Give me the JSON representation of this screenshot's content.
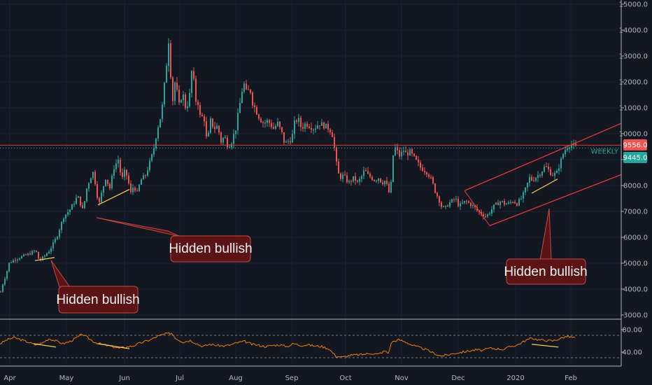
{
  "colors": {
    "background": "#131722",
    "grid": "#1e222d",
    "up": "#26a69a",
    "down": "#ef5350",
    "channel": "#e03a3a",
    "divergence": "#ffd54f",
    "rsi": "#f57c00",
    "callout_fill": "#5a1416",
    "callout_stroke": "#c24a44"
  },
  "chart_data": {
    "type": "candlestick",
    "price_axis": {
      "ticks": [
        "15000.0",
        "14000.0",
        "13000.0",
        "12000.0",
        "11000.0",
        "10000.0",
        "9000.0",
        "8000.0",
        "7000.0",
        "6000.0",
        "5000.0",
        "4000.0",
        "3000.0"
      ],
      "ylim": [
        3000,
        15000
      ]
    },
    "rsi_axis": {
      "ticks": [
        "80.00",
        "40.00"
      ],
      "ylim": [
        20,
        90
      ],
      "bands": [
        70,
        30
      ]
    },
    "time_axis": {
      "labels": [
        "Apr",
        "May",
        "Jun",
        "Jul",
        "Aug",
        "Sep",
        "Oct",
        "Nov",
        "Dec",
        "2020",
        "Feb"
      ]
    },
    "price_anchors": [
      [
        0,
        3900
      ],
      [
        3,
        4200
      ],
      [
        8,
        4600
      ],
      [
        12,
        5000
      ],
      [
        20,
        5150
      ],
      [
        30,
        5250
      ],
      [
        40,
        5350
      ],
      [
        50,
        5500
      ],
      [
        55,
        5100
      ],
      [
        60,
        5200
      ],
      [
        70,
        5500
      ],
      [
        80,
        6000
      ],
      [
        90,
        6800
      ],
      [
        100,
        7100
      ],
      [
        110,
        7600
      ],
      [
        118,
        7000
      ],
      [
        122,
        7800
      ],
      [
        128,
        8300
      ],
      [
        132,
        8500
      ],
      [
        136,
        8000
      ],
      [
        140,
        7200
      ],
      [
        145,
        7800
      ],
      [
        150,
        8300
      ],
      [
        156,
        7900
      ],
      [
        162,
        8700
      ],
      [
        168,
        9000
      ],
      [
        173,
        8200
      ],
      [
        178,
        8600
      ],
      [
        182,
        8200
      ],
      [
        186,
        7700
      ],
      [
        190,
        8000
      ],
      [
        195,
        7700
      ],
      [
        200,
        8200
      ],
      [
        207,
        8400
      ],
      [
        212,
        8800
      ],
      [
        218,
        9300
      ],
      [
        224,
        10200
      ],
      [
        230,
        10800
      ],
      [
        236,
        12400
      ],
      [
        240,
        13600
      ],
      [
        243,
        12300
      ],
      [
        246,
        11300
      ],
      [
        250,
        12200
      ],
      [
        254,
        11000
      ],
      [
        260,
        11600
      ],
      [
        265,
        10900
      ],
      [
        270,
        11500
      ],
      [
        274,
        12700
      ],
      [
        278,
        11300
      ],
      [
        282,
        11200
      ],
      [
        286,
        10500
      ],
      [
        290,
        10800
      ],
      [
        295,
        9600
      ],
      [
        300,
        10500
      ],
      [
        305,
        10200
      ],
      [
        310,
        10300
      ],
      [
        315,
        9700
      ],
      [
        320,
        9900
      ],
      [
        325,
        9500
      ],
      [
        330,
        9700
      ],
      [
        336,
        10200
      ],
      [
        341,
        11000
      ],
      [
        347,
        12000
      ],
      [
        352,
        11500
      ],
      [
        356,
        11800
      ],
      [
        360,
        11200
      ],
      [
        365,
        10900
      ],
      [
        370,
        10600
      ],
      [
        376,
        10400
      ],
      [
        382,
        10500
      ],
      [
        390,
        10200
      ],
      [
        396,
        10400
      ],
      [
        402,
        10000
      ],
      [
        406,
        9600
      ],
      [
        410,
        9700
      ],
      [
        416,
        9800
      ],
      [
        420,
        10400
      ],
      [
        425,
        10600
      ],
      [
        430,
        10200
      ],
      [
        436,
        10400
      ],
      [
        442,
        10300
      ],
      [
        448,
        10200
      ],
      [
        455,
        10400
      ],
      [
        463,
        10300
      ],
      [
        470,
        10200
      ],
      [
        475,
        9900
      ],
      [
        479,
        9000
      ],
      [
        482,
        8500
      ],
      [
        485,
        8300
      ],
      [
        490,
        8400
      ],
      [
        497,
        8100
      ],
      [
        505,
        8300
      ],
      [
        510,
        8100
      ],
      [
        515,
        8300
      ],
      [
        520,
        8600
      ],
      [
        525,
        8400
      ],
      [
        530,
        8300
      ],
      [
        535,
        8200
      ],
      [
        540,
        8300
      ],
      [
        545,
        8100
      ],
      [
        550,
        8200
      ],
      [
        554,
        7800
      ],
      [
        557,
        7600
      ],
      [
        560,
        9000
      ],
      [
        563,
        9500
      ],
      [
        567,
        9300
      ],
      [
        571,
        9100
      ],
      [
        575,
        9400
      ],
      [
        580,
        9200
      ],
      [
        585,
        9300
      ],
      [
        590,
        9100
      ],
      [
        595,
        8900
      ],
      [
        600,
        8700
      ],
      [
        605,
        8600
      ],
      [
        610,
        8500
      ],
      [
        616,
        8200
      ],
      [
        622,
        7700
      ],
      [
        626,
        7500
      ],
      [
        630,
        7200
      ],
      [
        635,
        7100
      ],
      [
        640,
        7300
      ],
      [
        645,
        7400
      ],
      [
        650,
        7500
      ],
      [
        655,
        7200
      ],
      [
        660,
        7300
      ],
      [
        665,
        7400
      ],
      [
        670,
        7300
      ],
      [
        676,
        7200
      ],
      [
        682,
        7000
      ],
      [
        688,
        6900
      ],
      [
        694,
        6800
      ],
      [
        700,
        7000
      ],
      [
        705,
        7200
      ],
      [
        710,
        7300
      ],
      [
        715,
        7400
      ],
      [
        720,
        7300
      ],
      [
        726,
        7300
      ],
      [
        732,
        7400
      ],
      [
        738,
        7300
      ],
      [
        744,
        7500
      ],
      [
        748,
        7700
      ],
      [
        752,
        8000
      ],
      [
        756,
        8300
      ],
      [
        760,
        8200
      ],
      [
        764,
        8300
      ],
      [
        768,
        8400
      ],
      [
        772,
        8500
      ],
      [
        777,
        8700
      ],
      [
        781,
        8700
      ],
      [
        785,
        8500
      ],
      [
        790,
        8400
      ],
      [
        795,
        8500
      ],
      [
        800,
        8900
      ],
      [
        805,
        9300
      ],
      [
        810,
        9500
      ],
      [
        815,
        9600
      ],
      [
        820,
        9500
      ],
      [
        824,
        9450
      ]
    ],
    "rsi_anchors": [
      [
        0,
        55
      ],
      [
        10,
        62
      ],
      [
        20,
        66
      ],
      [
        30,
        62
      ],
      [
        40,
        58
      ],
      [
        50,
        53
      ],
      [
        60,
        56
      ],
      [
        70,
        64
      ],
      [
        80,
        60
      ],
      [
        90,
        55
      ],
      [
        100,
        59
      ],
      [
        110,
        66
      ],
      [
        118,
        72
      ],
      [
        125,
        66
      ],
      [
        135,
        58
      ],
      [
        145,
        54
      ],
      [
        160,
        50
      ],
      [
        170,
        47
      ],
      [
        180,
        49
      ],
      [
        190,
        51
      ],
      [
        200,
        56
      ],
      [
        215,
        62
      ],
      [
        225,
        68
      ],
      [
        235,
        72
      ],
      [
        245,
        74
      ],
      [
        252,
        64
      ],
      [
        262,
        58
      ],
      [
        272,
        61
      ],
      [
        280,
        56
      ],
      [
        290,
        50
      ],
      [
        300,
        54
      ],
      [
        310,
        52
      ],
      [
        320,
        51
      ],
      [
        330,
        53
      ],
      [
        340,
        57
      ],
      [
        350,
        59
      ],
      [
        360,
        54
      ],
      [
        370,
        52
      ],
      [
        380,
        50
      ],
      [
        390,
        52
      ],
      [
        400,
        53
      ],
      [
        410,
        50
      ],
      [
        420,
        55
      ],
      [
        430,
        52
      ],
      [
        440,
        53
      ],
      [
        450,
        51
      ],
      [
        460,
        50
      ],
      [
        470,
        46
      ],
      [
        480,
        33
      ],
      [
        490,
        31
      ],
      [
        500,
        34
      ],
      [
        510,
        35
      ],
      [
        520,
        36
      ],
      [
        530,
        38
      ],
      [
        540,
        36
      ],
      [
        550,
        42
      ],
      [
        555,
        38
      ],
      [
        560,
        58
      ],
      [
        570,
        62
      ],
      [
        580,
        58
      ],
      [
        590,
        52
      ],
      [
        600,
        48
      ],
      [
        610,
        44
      ],
      [
        620,
        38
      ],
      [
        630,
        33
      ],
      [
        640,
        35
      ],
      [
        650,
        38
      ],
      [
        660,
        40
      ],
      [
        670,
        42
      ],
      [
        680,
        44
      ],
      [
        690,
        43
      ],
      [
        700,
        47
      ],
      [
        710,
        46
      ],
      [
        720,
        45
      ],
      [
        730,
        50
      ],
      [
        740,
        53
      ],
      [
        750,
        60
      ],
      [
        760,
        65
      ],
      [
        770,
        62
      ],
      [
        780,
        61
      ],
      [
        790,
        60
      ],
      [
        800,
        64
      ],
      [
        810,
        68
      ],
      [
        820,
        66
      ],
      [
        824,
        66
      ]
    ],
    "last_price_tags": [
      {
        "value": 9556.0,
        "label": "9556.0"
      },
      {
        "value": 9445.0,
        "label": "9445.0"
      }
    ],
    "horizontal_line": {
      "value": 9556,
      "label": "WEEKLY"
    },
    "channel": {
      "upper": [
        [
          664,
          7800
        ],
        [
          888,
          10400
        ]
      ],
      "lower": [
        [
          700,
          6450
        ],
        [
          888,
          8420
        ]
      ]
    },
    "price_divergences": [
      [
        [
          50,
          5100
        ],
        [
          78,
          5220
        ]
      ],
      [
        [
          140,
          7250
        ],
        [
          185,
          7850
        ]
      ],
      [
        [
          760,
          7700
        ],
        [
          797,
          8250
        ]
      ]
    ],
    "rsi_divergences": [
      [
        [
          48,
          55
        ],
        [
          80,
          49
        ]
      ],
      [
        [
          140,
          55
        ],
        [
          185,
          46
        ]
      ],
      [
        [
          760,
          54
        ],
        [
          798,
          49
        ]
      ]
    ],
    "callout_pointers": [
      {
        "box": [
          240,
          338
        ],
        "tip": [
          138,
          311
        ]
      },
      {
        "box": [
          94,
          409
        ],
        "tip": [
          73,
          372
        ]
      },
      {
        "box": [
          780,
          368
        ],
        "tip": [
          785,
          298
        ]
      }
    ],
    "callouts": [
      {
        "text": "Hidden bullish"
      },
      {
        "text": "Hidden bullish"
      },
      {
        "text": "Hidden bullish"
      }
    ]
  }
}
